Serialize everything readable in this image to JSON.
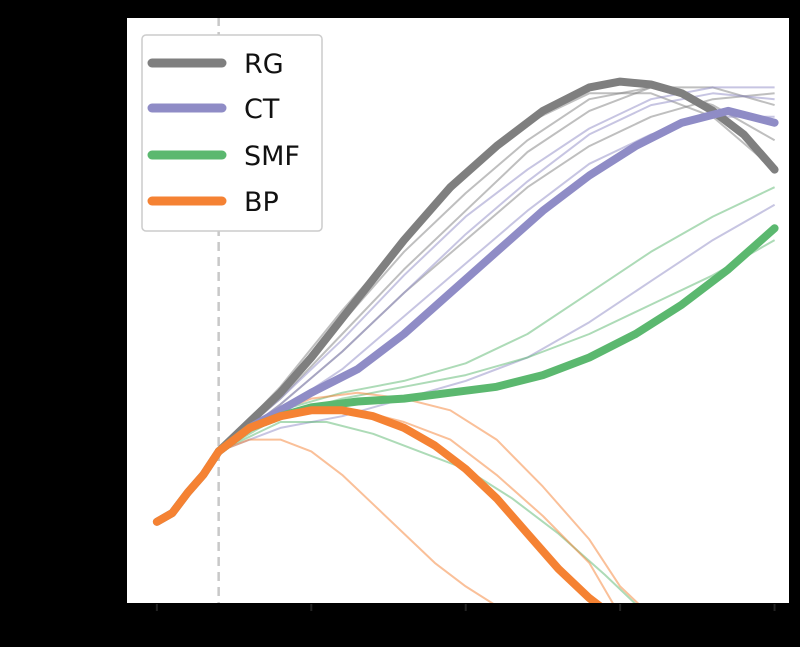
{
  "chart_data": {
    "type": "line",
    "title": "",
    "xlabel": "",
    "ylabel": "",
    "xlim": [
      -0.2,
      4.1
    ],
    "ylim": [
      0,
      1
    ],
    "x_ticks": [
      0,
      1,
      2,
      3,
      4
    ],
    "vline_x": 0.4,
    "legend": {
      "placement": "top-left"
    },
    "series": [
      {
        "name": "RG",
        "color": "#7f7f7f",
        "x": [
          0,
          0.1,
          0.2,
          0.3,
          0.4,
          0.6,
          0.8,
          1.0,
          1.3,
          1.6,
          1.9,
          2.2,
          2.5,
          2.8,
          3.0,
          3.2,
          3.4,
          3.6,
          3.8,
          4.0
        ],
        "y": [
          0.14,
          0.155,
          0.19,
          0.22,
          0.26,
          0.31,
          0.36,
          0.42,
          0.52,
          0.62,
          0.71,
          0.78,
          0.84,
          0.88,
          0.89,
          0.885,
          0.87,
          0.84,
          0.8,
          0.74
        ],
        "thin": [
          {
            "x": [
              0.4,
              0.8,
              1.2,
              1.6,
              2.0,
              2.4,
              2.8,
              3.2,
              3.6,
              4.0
            ],
            "y": [
              0.26,
              0.37,
              0.5,
              0.62,
              0.73,
              0.82,
              0.87,
              0.87,
              0.83,
              0.74
            ]
          },
          {
            "x": [
              0.4,
              0.8,
              1.2,
              1.6,
              2.0,
              2.4,
              2.8,
              3.2,
              3.6,
              4.0
            ],
            "y": [
              0.26,
              0.35,
              0.46,
              0.57,
              0.67,
              0.77,
              0.84,
              0.88,
              0.88,
              0.85
            ]
          },
          {
            "x": [
              0.4,
              0.8,
              1.2,
              1.6,
              2.0,
              2.4,
              2.8,
              3.2,
              3.6,
              4.0
            ],
            "y": [
              0.26,
              0.34,
              0.43,
              0.53,
              0.62,
              0.71,
              0.78,
              0.83,
              0.86,
              0.87
            ]
          },
          {
            "x": [
              0.4,
              0.8,
              1.2,
              1.6,
              2.0,
              2.4,
              2.8,
              3.2,
              3.6,
              4.0
            ],
            "y": [
              0.26,
              0.36,
              0.48,
              0.6,
              0.7,
              0.79,
              0.86,
              0.88,
              0.85,
              0.79
            ]
          }
        ]
      },
      {
        "name": "CT",
        "color": "#8f8cc6",
        "x": [
          0.4,
          0.6,
          0.8,
          1.0,
          1.3,
          1.6,
          1.9,
          2.2,
          2.5,
          2.8,
          3.1,
          3.4,
          3.7,
          4.0
        ],
        "y": [
          0.26,
          0.3,
          0.33,
          0.36,
          0.4,
          0.46,
          0.53,
          0.6,
          0.67,
          0.73,
          0.78,
          0.82,
          0.84,
          0.82
        ],
        "thin": [
          {
            "x": [
              0.4,
              0.8,
              1.2,
              1.6,
              2.0,
              2.4,
              2.8,
              3.2,
              3.6,
              4.0
            ],
            "y": [
              0.26,
              0.35,
              0.45,
              0.56,
              0.66,
              0.74,
              0.81,
              0.86,
              0.88,
              0.88
            ]
          },
          {
            "x": [
              0.4,
              0.8,
              1.2,
              1.6,
              2.0,
              2.4,
              2.8,
              3.2,
              3.6,
              4.0
            ],
            "y": [
              0.26,
              0.33,
              0.4,
              0.49,
              0.58,
              0.67,
              0.75,
              0.8,
              0.83,
              0.83
            ]
          },
          {
            "x": [
              0.4,
              0.8,
              1.2,
              1.6,
              2.0,
              2.4,
              2.8,
              3.2,
              3.6,
              4.0
            ],
            "y": [
              0.26,
              0.3,
              0.32,
              0.35,
              0.38,
              0.42,
              0.48,
              0.55,
              0.62,
              0.68
            ]
          },
          {
            "x": [
              0.4,
              0.8,
              1.2,
              1.6,
              2.0,
              2.4,
              2.8,
              3.2,
              3.6,
              4.0
            ],
            "y": [
              0.26,
              0.34,
              0.43,
              0.53,
              0.63,
              0.72,
              0.8,
              0.85,
              0.87,
              0.86
            ]
          }
        ]
      },
      {
        "name": "SMF",
        "color": "#5bb86f",
        "x": [
          0.4,
          0.6,
          0.8,
          1.0,
          1.3,
          1.6,
          1.9,
          2.2,
          2.5,
          2.8,
          3.1,
          3.4,
          3.7,
          4.0
        ],
        "y": [
          0.26,
          0.3,
          0.32,
          0.335,
          0.345,
          0.35,
          0.36,
          0.37,
          0.39,
          0.42,
          0.46,
          0.51,
          0.57,
          0.64
        ],
        "thin": [
          {
            "x": [
              0.4,
              0.8,
              1.2,
              1.6,
              2.0,
              2.4,
              2.8,
              3.2,
              3.6,
              4.0
            ],
            "y": [
              0.26,
              0.33,
              0.36,
              0.38,
              0.41,
              0.46,
              0.53,
              0.6,
              0.66,
              0.71
            ]
          },
          {
            "x": [
              0.4,
              0.8,
              1.2,
              1.6,
              2.0,
              2.4,
              2.8,
              3.2,
              3.6,
              4.0
            ],
            "y": [
              0.26,
              0.32,
              0.35,
              0.37,
              0.39,
              0.42,
              0.46,
              0.51,
              0.56,
              0.62
            ]
          },
          {
            "x": [
              0.4,
              0.8,
              1.1,
              1.4,
              1.7,
              2.0,
              2.3,
              2.6,
              2.9,
              3.1
            ],
            "y": [
              0.26,
              0.31,
              0.31,
              0.29,
              0.26,
              0.23,
              0.18,
              0.12,
              0.05,
              0.0
            ]
          }
        ]
      },
      {
        "name": "BP",
        "color": "#f58233",
        "x": [
          0,
          0.1,
          0.2,
          0.3,
          0.4,
          0.6,
          0.8,
          1.0,
          1.2,
          1.4,
          1.6,
          1.8,
          2.0,
          2.2,
          2.4,
          2.6,
          2.8,
          2.95
        ],
        "y": [
          0.14,
          0.155,
          0.19,
          0.22,
          0.26,
          0.3,
          0.32,
          0.33,
          0.33,
          0.32,
          0.3,
          0.27,
          0.23,
          0.18,
          0.12,
          0.06,
          0.01,
          -0.02
        ],
        "thin": [
          {
            "x": [
              0.4,
              0.7,
              1.0,
              1.3,
              1.6,
              1.9,
              2.2,
              2.5,
              2.8,
              3.0,
              3.2
            ],
            "y": [
              0.26,
              0.32,
              0.35,
              0.36,
              0.35,
              0.33,
              0.28,
              0.2,
              0.11,
              0.03,
              -0.02
            ]
          },
          {
            "x": [
              0.4,
              0.6,
              0.8,
              1.0,
              1.2,
              1.4,
              1.6,
              1.8,
              2.0,
              2.3
            ],
            "y": [
              0.26,
              0.28,
              0.28,
              0.26,
              0.22,
              0.17,
              0.12,
              0.07,
              0.03,
              -0.02
            ]
          },
          {
            "x": [
              0.4,
              0.7,
              1.0,
              1.3,
              1.6,
              1.9,
              2.2,
              2.5,
              2.8,
              3.0
            ],
            "y": [
              0.26,
              0.31,
              0.33,
              0.33,
              0.31,
              0.28,
              0.22,
              0.15,
              0.07,
              -0.02
            ]
          }
        ]
      }
    ]
  }
}
